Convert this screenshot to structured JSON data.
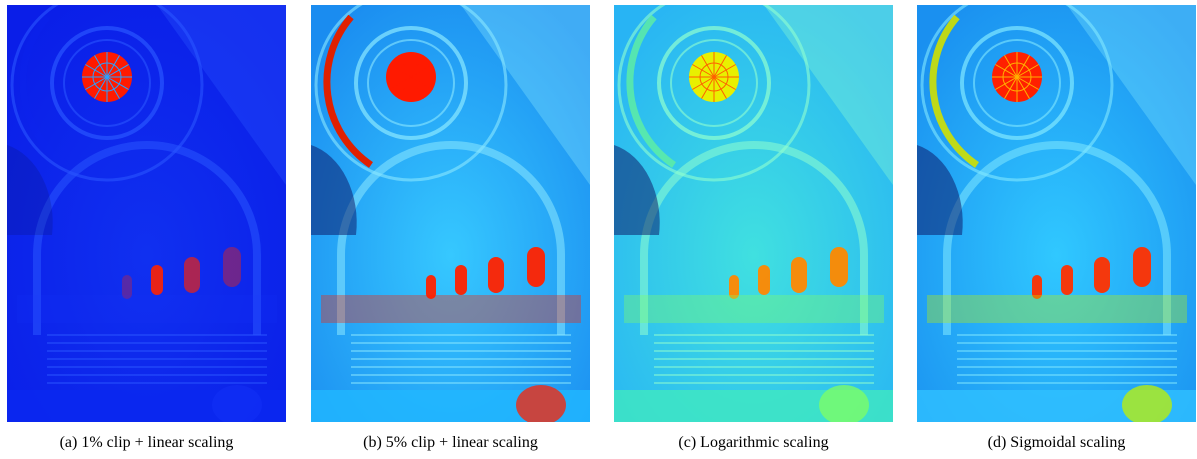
{
  "figure": {
    "panels": [
      {
        "caption": "(a) 1% clip + linear scaling"
      },
      {
        "caption": "(b) 5% clip + linear scaling"
      },
      {
        "caption": "(c) Logarithmic scaling"
      },
      {
        "caption": "(d) Sigmoidal scaling"
      }
    ]
  }
}
